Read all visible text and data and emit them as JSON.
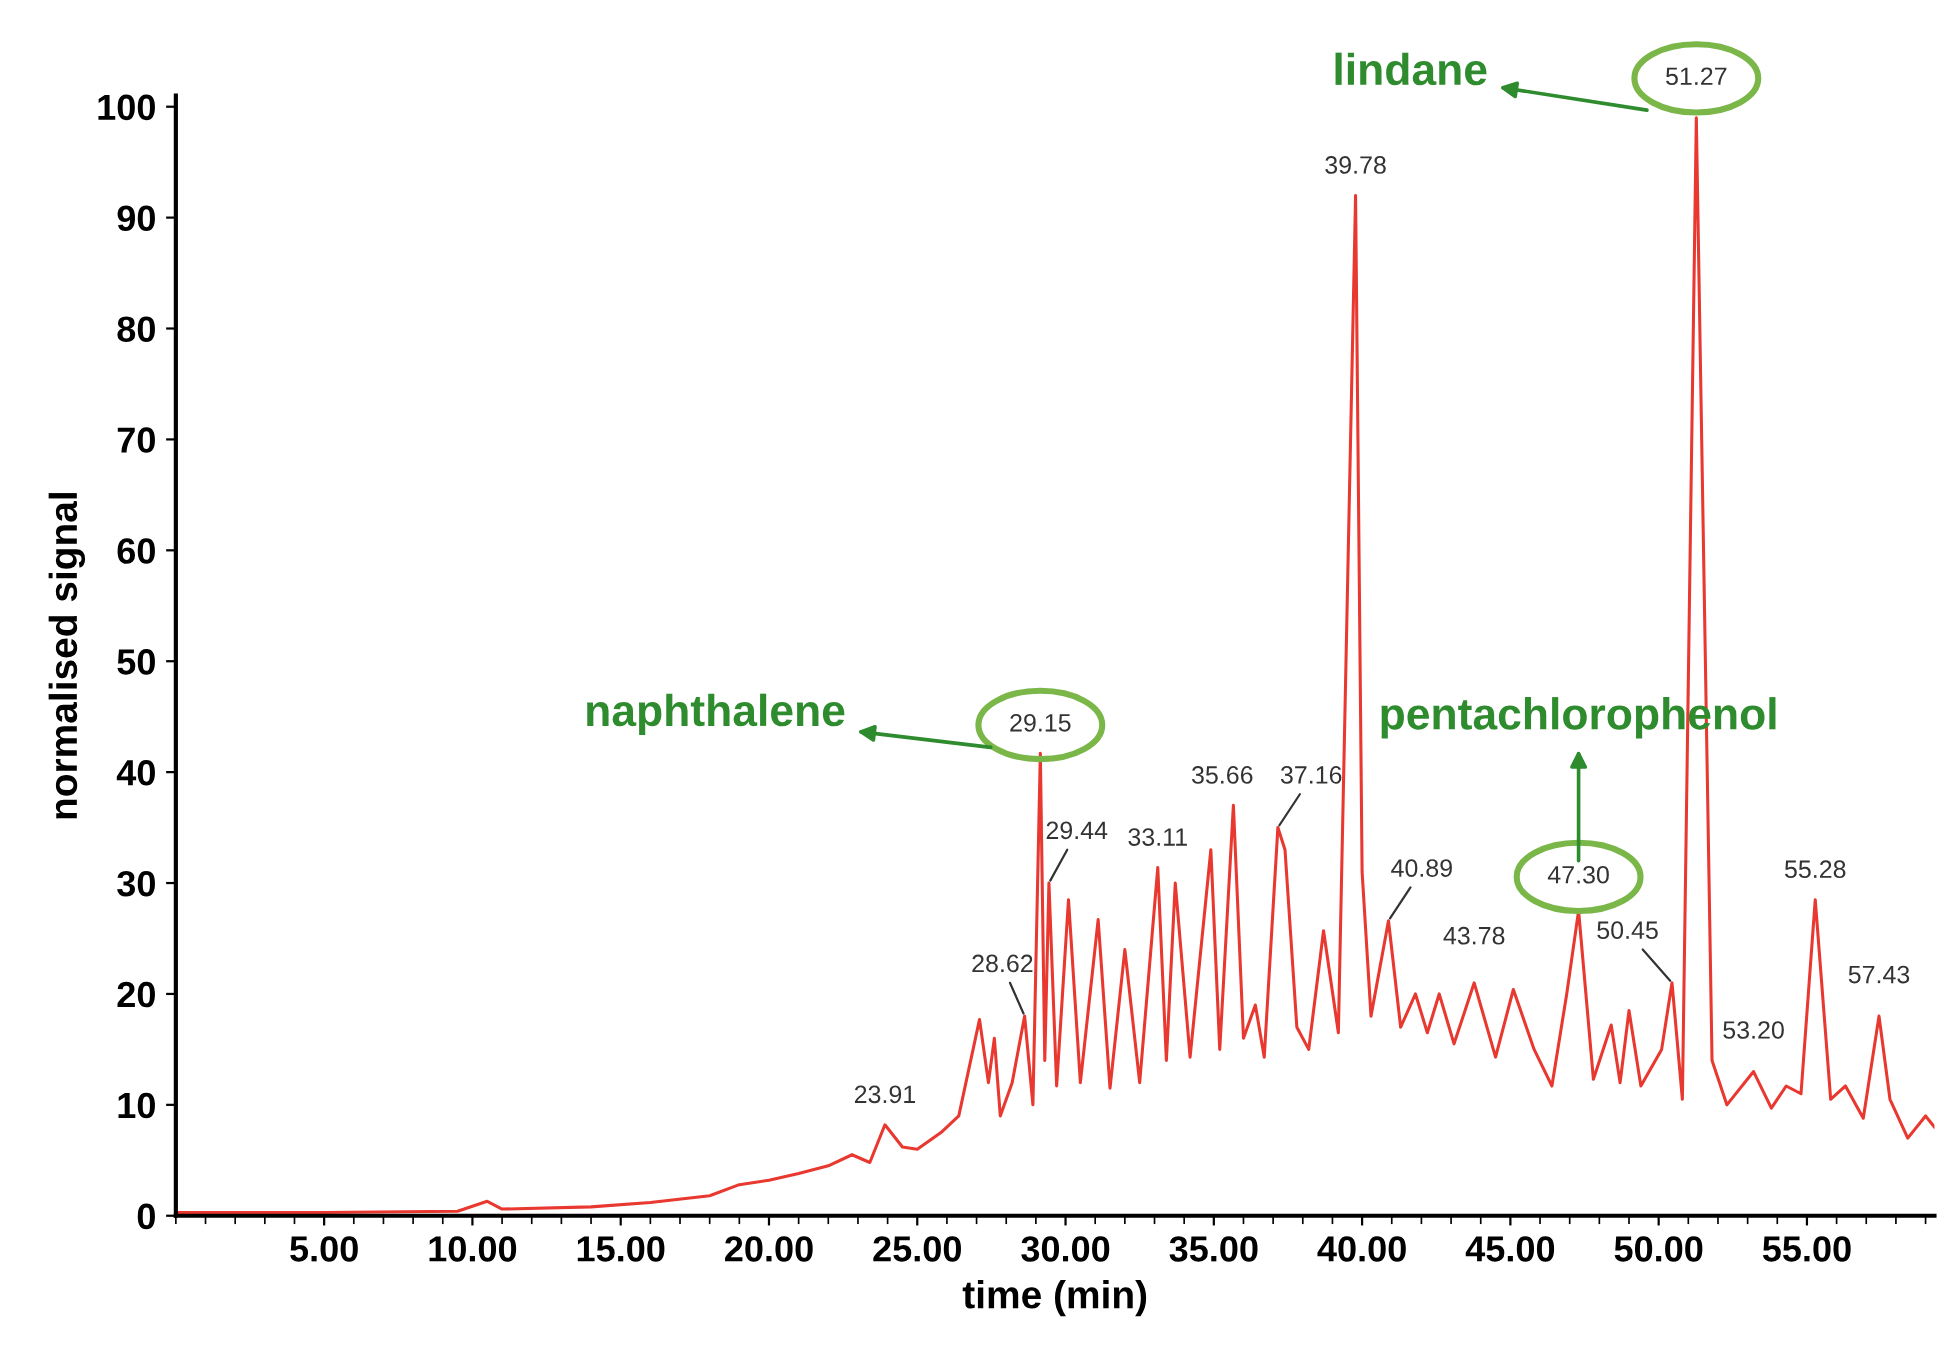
{
  "chart_data": {
    "type": "line",
    "xlabel": "time (min)",
    "ylabel": "normalised signal",
    "xlim": [
      0,
      59.3
    ],
    "ylim": [
      0,
      101
    ],
    "xticks": [
      {
        "value": 5,
        "label": "5.00"
      },
      {
        "value": 10,
        "label": "10.00"
      },
      {
        "value": 15,
        "label": "15.00"
      },
      {
        "value": 20,
        "label": "20.00"
      },
      {
        "value": 25,
        "label": "25.00"
      },
      {
        "value": 30,
        "label": "30.00"
      },
      {
        "value": 35,
        "label": "35.00"
      },
      {
        "value": 40,
        "label": "40.00"
      },
      {
        "value": 45,
        "label": "45.00"
      },
      {
        "value": 50,
        "label": "50.00"
      },
      {
        "value": 55,
        "label": "55.00"
      }
    ],
    "yticks": [
      0,
      10,
      20,
      30,
      40,
      50,
      60,
      70,
      80,
      90,
      100
    ],
    "grid": false,
    "legend": false,
    "marker": "none",
    "line_style": "solid",
    "series": [
      {
        "color": "#e8382f",
        "x": [
          0,
          5,
          9.5,
          10.5,
          11,
          14,
          16,
          18,
          19,
          20,
          21,
          22,
          22.8,
          23.4,
          23.91,
          24.5,
          25,
          25.8,
          26.4,
          27.1,
          27.4,
          27.6,
          27.8,
          28.2,
          28.62,
          28.9,
          29.15,
          29.3,
          29.44,
          29.7,
          30.1,
          30.5,
          31.1,
          31.5,
          32,
          32.5,
          33.11,
          33.4,
          33.7,
          34.2,
          34.9,
          35.2,
          35.66,
          36,
          36.4,
          36.7,
          37.16,
          37.4,
          37.8,
          38.2,
          38.7,
          39.2,
          39.78,
          40,
          40.3,
          40.89,
          41.3,
          41.8,
          42.2,
          42.6,
          43.1,
          43.78,
          44.5,
          45.1,
          45.8,
          46.4,
          46.9,
          47.3,
          47.8,
          48.4,
          48.7,
          49.0,
          49.4,
          50.1,
          50.45,
          50.8,
          51.27,
          51.8,
          52.3,
          53.2,
          53.8,
          54.3,
          54.8,
          55.28,
          55.8,
          56.3,
          56.9,
          57.43,
          57.8,
          58.4,
          59,
          59.3
        ],
        "values": [
          0.3,
          0.3,
          0.4,
          1.3,
          0.6,
          0.8,
          1.2,
          1.8,
          2.8,
          3.2,
          3.8,
          4.5,
          5.5,
          4.8,
          8.2,
          6.2,
          6,
          7.5,
          9,
          17.7,
          12,
          16,
          9,
          12,
          18,
          10,
          41.7,
          14,
          30,
          11.7,
          28.5,
          12,
          26.7,
          11.5,
          24,
          12,
          31.4,
          14,
          30,
          14.3,
          33,
          15,
          37,
          16,
          19,
          14.3,
          35,
          33,
          17,
          15,
          25.7,
          16.5,
          92,
          31,
          18,
          26.6,
          17,
          20,
          16.5,
          20,
          15.5,
          21,
          14.3,
          20.4,
          15,
          11.7,
          20,
          27.5,
          12.3,
          17.2,
          12,
          18.5,
          11.7,
          15,
          21,
          10.5,
          99,
          14,
          10,
          13,
          9.7,
          11.7,
          11,
          28.5,
          10.5,
          11.7,
          8.8,
          18,
          10.5,
          7,
          9,
          8
        ]
      }
    ],
    "annotations": [
      {
        "text": "23.91",
        "x": 23.91,
        "y": 8.2
      },
      {
        "text": "28.62",
        "x": 28.62,
        "y": 18
      },
      {
        "text": "29.15",
        "x": 29.15,
        "y": 41.7
      },
      {
        "text": "29.44",
        "x": 29.44,
        "y": 30
      },
      {
        "text": "33.11",
        "x": 33.11,
        "y": 31.4
      },
      {
        "text": "35.66",
        "x": 35.66,
        "y": 37
      },
      {
        "text": "37.16",
        "x": 37.16,
        "y": 35
      },
      {
        "text": "39.78",
        "x": 39.78,
        "y": 92
      },
      {
        "text": "40.89",
        "x": 40.89,
        "y": 26.6
      },
      {
        "text": "43.78",
        "x": 43.78,
        "y": 21
      },
      {
        "text": "47.30",
        "x": 47.3,
        "y": 27.5
      },
      {
        "text": "50.45",
        "x": 50.45,
        "y": 21
      },
      {
        "text": "51.27",
        "x": 51.27,
        "y": 99
      },
      {
        "text": "53.20",
        "x": 53.2,
        "y": 13
      },
      {
        "text": "55.28",
        "x": 55.28,
        "y": 28.5
      },
      {
        "text": "57.43",
        "x": 57.43,
        "y": 18
      },
      "naphthalene",
      "lindane",
      "pentachlorophenol"
    ]
  }
}
